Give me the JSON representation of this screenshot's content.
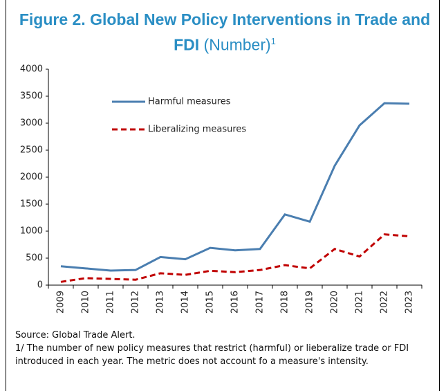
{
  "chart_data": {
    "type": "line",
    "title": "Figure 2. Global New Policy Interventions in Trade and FDI",
    "subtitle": "(Number)",
    "subtitle_note_marker": "1",
    "categories": [
      "2009",
      "2010",
      "2011",
      "2012",
      "2013",
      "2014",
      "2015",
      "2016",
      "2017",
      "2018",
      "2019",
      "2020",
      "2021",
      "2022",
      "2023"
    ],
    "series": [
      {
        "name": "Harmful measures",
        "color": "#4a7eb0",
        "dash": false,
        "values": [
          350,
          310,
          270,
          280,
          520,
          480,
          690,
          645,
          670,
          1310,
          1175,
          2210,
          2960,
          3370,
          3360
        ]
      },
      {
        "name": "Liberalizing measures",
        "color": "#c00000",
        "dash": true,
        "values": [
          60,
          130,
          115,
          100,
          220,
          190,
          265,
          240,
          280,
          370,
          310,
          670,
          530,
          940,
          905
        ]
      }
    ],
    "ylim": [
      0,
      4000
    ],
    "yticks": [
      0,
      500,
      1000,
      1500,
      2000,
      2500,
      3000,
      3500,
      4000
    ],
    "grid": false,
    "notes": [
      "Source: Global Trade Alert.",
      "1/ The number of new policy measures that restrict (harmful) or lieberalize trade or FDI introduced in each year. The metric does not account fo a measure's intensity."
    ]
  }
}
